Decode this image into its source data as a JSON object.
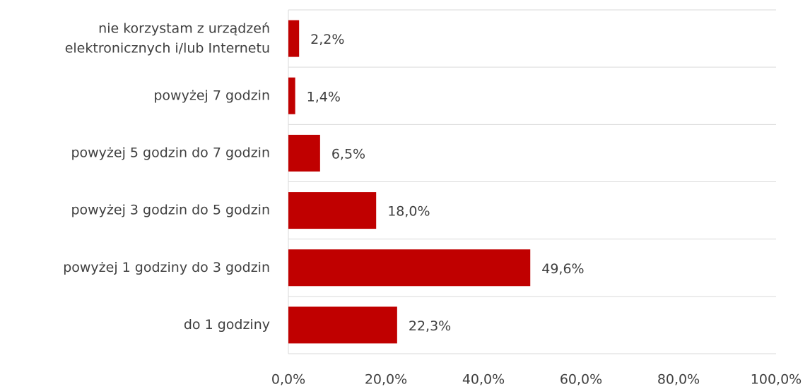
{
  "chart_data": {
    "type": "bar",
    "orientation": "horizontal",
    "categories": [
      "nie korzystam z urządzeń\nelektronicznych i/lub Internetu",
      "powyżej 7 godzin",
      "powyżej 5 godzin do 7 godzin",
      "powyżej 3 godzin do 5 godzin",
      "powyżej 1 godziny do 3 godzin",
      "do 1 godziny"
    ],
    "values": [
      2.2,
      1.4,
      6.5,
      18.0,
      49.6,
      22.3
    ],
    "value_labels": [
      "2,2%",
      "1,4%",
      "6,5%",
      "18,0%",
      "49,6%",
      "22,3%"
    ],
    "color": "#c00000",
    "xlim": [
      0,
      100
    ],
    "xticks": [
      {
        "value": 0,
        "label": "0,0%"
      },
      {
        "value": 20,
        "label": "20,0%"
      },
      {
        "value": 40,
        "label": "40,0%"
      },
      {
        "value": 60,
        "label": "60,0%"
      },
      {
        "value": 80,
        "label": "80,0%"
      },
      {
        "value": 100,
        "label": "100,0%"
      }
    ]
  }
}
